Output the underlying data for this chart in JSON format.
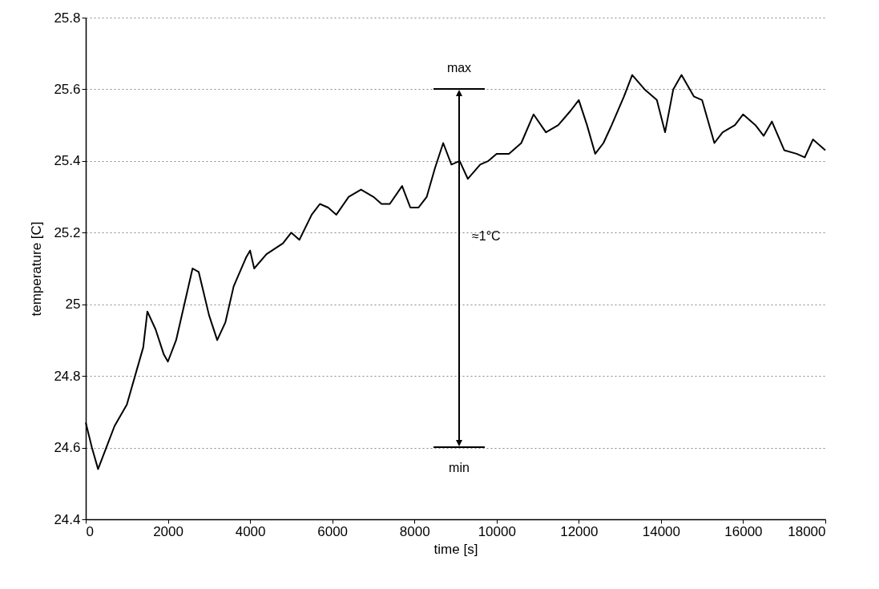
{
  "chart_data": {
    "type": "line",
    "xlabel": "time [s]",
    "ylabel": "temperature [C]",
    "xlim": [
      0,
      18000
    ],
    "xticks": [
      0,
      2000,
      4000,
      6000,
      8000,
      10000,
      12000,
      14000,
      16000,
      18000
    ],
    "ylim": [
      24.4,
      25.8
    ],
    "yticks": [
      24.4,
      24.6,
      24.8,
      25,
      25.2,
      25.4,
      25.6,
      25.8
    ],
    "grid": "y",
    "legend": false,
    "marker": "none",
    "line_style": "solid",
    "series": [
      {
        "color": "#000000",
        "x": [
          0,
          150,
          300,
          500,
          700,
          1000,
          1200,
          1400,
          1500,
          1700,
          1900,
          2000,
          2200,
          2400,
          2600,
          2750,
          3000,
          3200,
          3400,
          3600,
          3900,
          4000,
          4100,
          4400,
          4800,
          5000,
          5200,
          5500,
          5700,
          5900,
          6100,
          6400,
          6700,
          7000,
          7200,
          7400,
          7700,
          7900,
          8100,
          8300,
          8500,
          8700,
          8900,
          9100,
          9300,
          9600,
          9800,
          10000,
          10300,
          10600,
          10900,
          11200,
          11500,
          11800,
          12000,
          12200,
          12400,
          12600,
          12800,
          13100,
          13300,
          13600,
          13900,
          14100,
          14300,
          14500,
          14800,
          15000,
          15300,
          15500,
          15800,
          16000,
          16300,
          16500,
          16700,
          17000,
          17300,
          17500,
          17700,
          18000
        ],
        "values": [
          24.67,
          24.6,
          24.54,
          24.6,
          24.66,
          24.72,
          24.8,
          24.88,
          24.98,
          24.93,
          24.86,
          24.84,
          24.9,
          25.0,
          25.1,
          25.09,
          24.97,
          24.9,
          24.95,
          25.05,
          25.13,
          25.15,
          25.1,
          25.14,
          25.17,
          25.2,
          25.18,
          25.25,
          25.28,
          25.27,
          25.25,
          25.3,
          25.32,
          25.3,
          25.28,
          25.28,
          25.33,
          25.27,
          25.27,
          25.3,
          25.38,
          25.45,
          25.39,
          25.4,
          25.35,
          25.39,
          25.4,
          25.42,
          25.42,
          25.45,
          25.53,
          25.48,
          25.5,
          25.54,
          25.57,
          25.5,
          25.42,
          25.45,
          25.5,
          25.58,
          25.64,
          25.6,
          25.57,
          25.48,
          25.6,
          25.64,
          25.58,
          25.57,
          25.45,
          25.48,
          25.5,
          25.53,
          25.5,
          25.47,
          25.51,
          25.43,
          25.42,
          25.41,
          25.46,
          25.43
        ]
      }
    ],
    "annotations": [
      "max",
      "min",
      "≈1°C"
    ]
  }
}
